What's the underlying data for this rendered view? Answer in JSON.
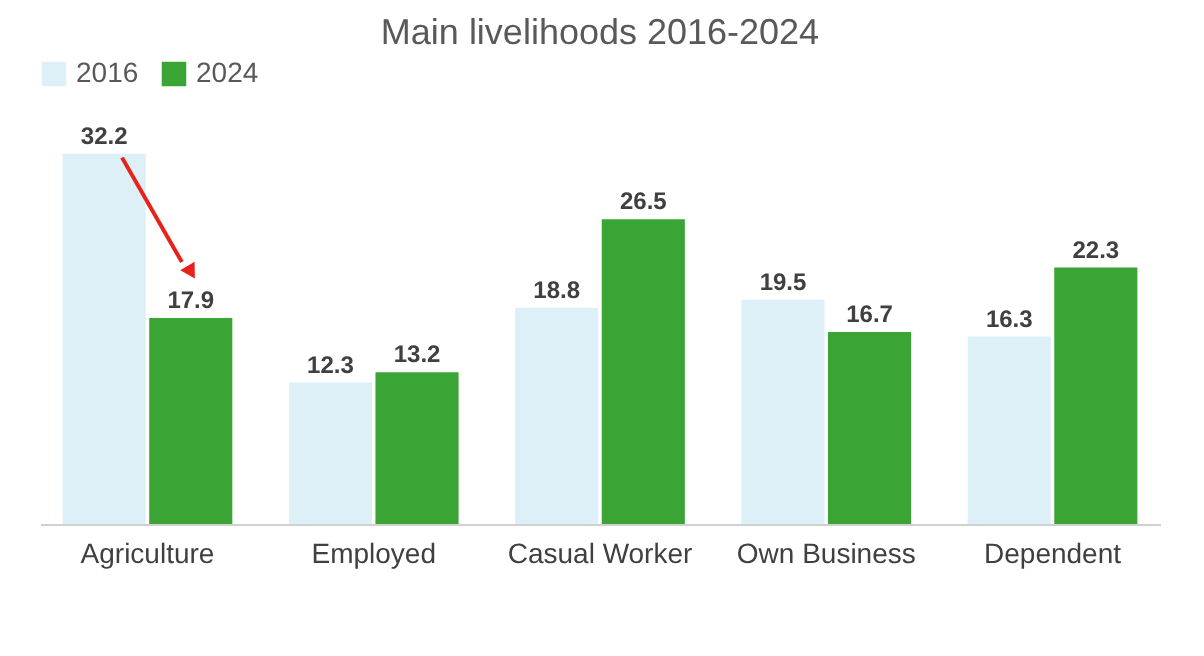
{
  "chart_data": {
    "type": "bar",
    "title": "Main livelihoods 2016-2024",
    "categories": [
      "Agriculture",
      "Employed",
      "Casual Worker",
      "Own Business",
      "Dependent"
    ],
    "series": [
      {
        "name": "2016",
        "color": "#ddf0f8",
        "values": [
          32.2,
          12.3,
          18.8,
          19.5,
          16.3
        ]
      },
      {
        "name": "2024",
        "color": "#3aa535",
        "values": [
          17.9,
          13.2,
          26.5,
          16.7,
          22.3
        ]
      }
    ],
    "data_labels": true,
    "legend": "top",
    "grid": false,
    "tick_labels": "x"
  }
}
